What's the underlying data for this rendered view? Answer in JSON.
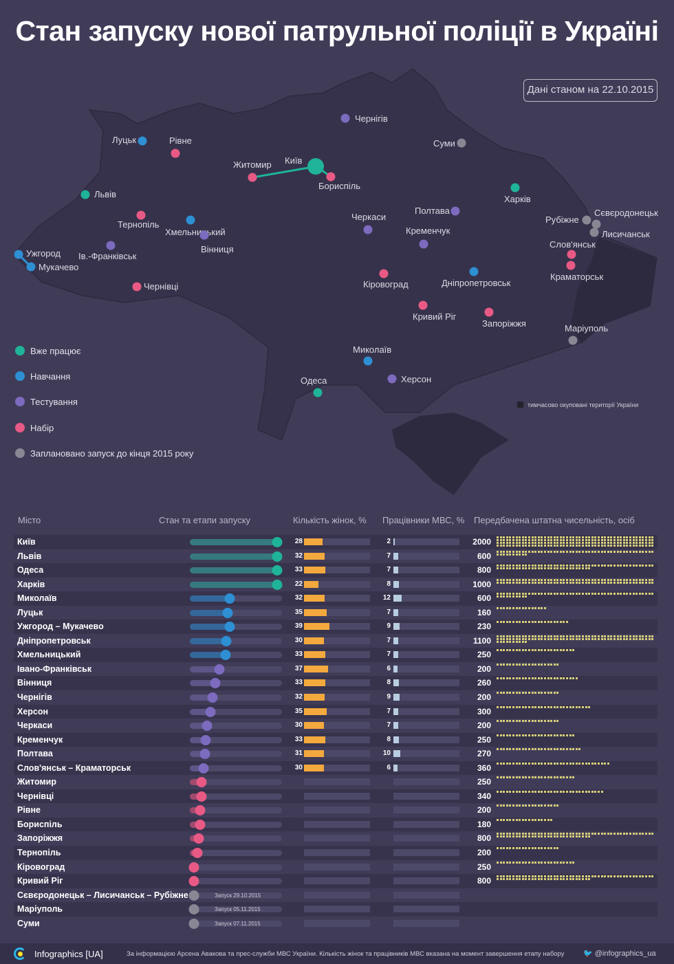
{
  "title": "Стан запуску нової патрульної поліції в Україні",
  "date_badge": "Дані станом на 22.10.2015",
  "colors": {
    "working": "#1fb39a",
    "training": "#2e8fd3",
    "testing": "#7c6bbf",
    "recruiting": "#e85a85",
    "planned": "#8a8794"
  },
  "legend": [
    {
      "status": "working",
      "label": "Вже працює"
    },
    {
      "status": "training",
      "label": "Навчання"
    },
    {
      "status": "testing",
      "label": "Тестування"
    },
    {
      "status": "recruiting",
      "label": "Набір"
    },
    {
      "status": "planned",
      "label": "Заплановано запуск до кінця 2015 року"
    }
  ],
  "occupied_note": "тимчасово окуповані території України",
  "map_cities": [
    {
      "name": "Київ",
      "status": "working"
    },
    {
      "name": "Житомир",
      "status": "recruiting"
    },
    {
      "name": "Бориспіль",
      "status": "recruiting"
    },
    {
      "name": "Львів",
      "status": "working"
    },
    {
      "name": "Луцьк",
      "status": "training"
    },
    {
      "name": "Рівне",
      "status": "recruiting"
    },
    {
      "name": "Тернопіль",
      "status": "recruiting"
    },
    {
      "name": "Хмельницький",
      "status": "training"
    },
    {
      "name": "Ів.-Франківськ",
      "status": "testing"
    },
    {
      "name": "Вінниця",
      "status": "testing"
    },
    {
      "name": "Ужгород",
      "status": "training"
    },
    {
      "name": "Мукачево",
      "status": "training"
    },
    {
      "name": "Чернівці",
      "status": "recruiting"
    },
    {
      "name": "Чернігів",
      "status": "testing"
    },
    {
      "name": "Суми",
      "status": "planned"
    },
    {
      "name": "Харків",
      "status": "working"
    },
    {
      "name": "Полтава",
      "status": "testing"
    },
    {
      "name": "Черкаси",
      "status": "testing"
    },
    {
      "name": "Кременчук",
      "status": "testing"
    },
    {
      "name": "Кіровоград",
      "status": "recruiting"
    },
    {
      "name": "Дніпропетровськ",
      "status": "training"
    },
    {
      "name": "Кривий Ріг",
      "status": "recruiting"
    },
    {
      "name": "Запоріжжя",
      "status": "recruiting"
    },
    {
      "name": "Маріуполь",
      "status": "planned"
    },
    {
      "name": "Миколаїв",
      "status": "training"
    },
    {
      "name": "Херсон",
      "status": "testing"
    },
    {
      "name": "Одеса",
      "status": "working"
    },
    {
      "name": "Рубіжне",
      "status": "planned"
    },
    {
      "name": "Сєвєродонецьк",
      "status": "planned"
    },
    {
      "name": "Лисичанськ",
      "status": "planned"
    },
    {
      "name": "Слов'янськ",
      "status": "recruiting"
    },
    {
      "name": "Краматорськ",
      "status": "recruiting"
    }
  ],
  "table_headers": {
    "city": "Місто",
    "stage": "Стан та етапи запуску",
    "women": "Кількість жінок, %",
    "mvs": "Працівники МВС, %",
    "staff": "Передбачена штатна чисельність, осіб"
  },
  "chart_data": {
    "type": "table",
    "columns": [
      "city",
      "status",
      "progress",
      "women_pct",
      "mvs_pct",
      "staff",
      "launch_note"
    ],
    "rows": [
      {
        "city": "Київ",
        "status": "working",
        "progress": 1,
        "women_pct": 28,
        "mvs_pct": 2,
        "staff": 2000
      },
      {
        "city": "Львів",
        "status": "working",
        "progress": 1,
        "women_pct": 32,
        "mvs_pct": 7,
        "staff": 600
      },
      {
        "city": "Одеса",
        "status": "working",
        "progress": 1,
        "women_pct": 33,
        "mvs_pct": 7,
        "staff": 800
      },
      {
        "city": "Харків",
        "status": "working",
        "progress": 1,
        "women_pct": 22,
        "mvs_pct": 8,
        "staff": 1000
      },
      {
        "city": "Миколаїв",
        "status": "training",
        "progress": 0.46,
        "women_pct": 32,
        "mvs_pct": 12,
        "staff": 600
      },
      {
        "city": "Луцьк",
        "status": "training",
        "progress": 0.43,
        "women_pct": 35,
        "mvs_pct": 7,
        "staff": 160
      },
      {
        "city": "Ужгород – Мукачево",
        "status": "training",
        "progress": 0.46,
        "women_pct": 39,
        "mvs_pct": 9,
        "staff": 230
      },
      {
        "city": "Дніпропетровськ",
        "status": "training",
        "progress": 0.42,
        "women_pct": 30,
        "mvs_pct": 7,
        "staff": 1100
      },
      {
        "city": "Хмельницький",
        "status": "training",
        "progress": 0.41,
        "women_pct": 33,
        "mvs_pct": 7,
        "staff": 250
      },
      {
        "city": "Івано-Франківськ",
        "status": "testing",
        "progress": 0.34,
        "women_pct": 37,
        "mvs_pct": 6,
        "staff": 200
      },
      {
        "city": "Вінниця",
        "status": "testing",
        "progress": 0.29,
        "women_pct": 33,
        "mvs_pct": 8,
        "staff": 260
      },
      {
        "city": "Чернігів",
        "status": "testing",
        "progress": 0.26,
        "women_pct": 32,
        "mvs_pct": 9,
        "staff": 200
      },
      {
        "city": "Херсон",
        "status": "testing",
        "progress": 0.24,
        "women_pct": 35,
        "mvs_pct": 7,
        "staff": 300
      },
      {
        "city": "Черкаси",
        "status": "testing",
        "progress": 0.2,
        "women_pct": 30,
        "mvs_pct": 7,
        "staff": 200
      },
      {
        "city": "Кременчук",
        "status": "testing",
        "progress": 0.18,
        "women_pct": 33,
        "mvs_pct": 8,
        "staff": 250
      },
      {
        "city": "Полтава",
        "status": "testing",
        "progress": 0.17,
        "women_pct": 31,
        "mvs_pct": 10,
        "staff": 270
      },
      {
        "city": "Слов'янськ – Краматорськ",
        "status": "testing",
        "progress": 0.16,
        "women_pct": 30,
        "mvs_pct": 6,
        "staff": 360
      },
      {
        "city": "Житомир",
        "status": "recruiting",
        "progress": 0.13,
        "staff": 250
      },
      {
        "city": "Чернівці",
        "status": "recruiting",
        "progress": 0.13,
        "staff": 340
      },
      {
        "city": "Рівне",
        "status": "recruiting",
        "progress": 0.12,
        "staff": 200
      },
      {
        "city": "Бориспіль",
        "status": "recruiting",
        "progress": 0.12,
        "staff": 180
      },
      {
        "city": "Запоріжжя",
        "status": "recruiting",
        "progress": 0.1,
        "staff": 800
      },
      {
        "city": "Тернопіль",
        "status": "recruiting",
        "progress": 0.09,
        "staff": 200
      },
      {
        "city": "Кіровоград",
        "status": "recruiting",
        "progress": 0.05,
        "staff": 250
      },
      {
        "city": "Кривий Ріг",
        "status": "recruiting",
        "progress": 0.05,
        "staff": 800
      },
      {
        "city": "Сєвєродонецьк – Лисичанськ – Рубіжне",
        "status": "planned",
        "progress": 0.05,
        "launch_note": "Запуск 29.10.2015"
      },
      {
        "city": "Маріуполь",
        "status": "planned",
        "progress": 0.05,
        "launch_note": "Запуск 05.11.2015"
      },
      {
        "city": "Суми",
        "status": "planned",
        "progress": 0.05,
        "launch_note": "Запуск 07.11.2015"
      }
    ]
  },
  "footer": {
    "brand": "Infographics [UA]",
    "source": "За інформацією Арсена Авакова та прес-служби МВС України. Кількість жінок та працівників МВС вказана на момент завершення етапу набору",
    "twitter": "@infographics_ua"
  }
}
